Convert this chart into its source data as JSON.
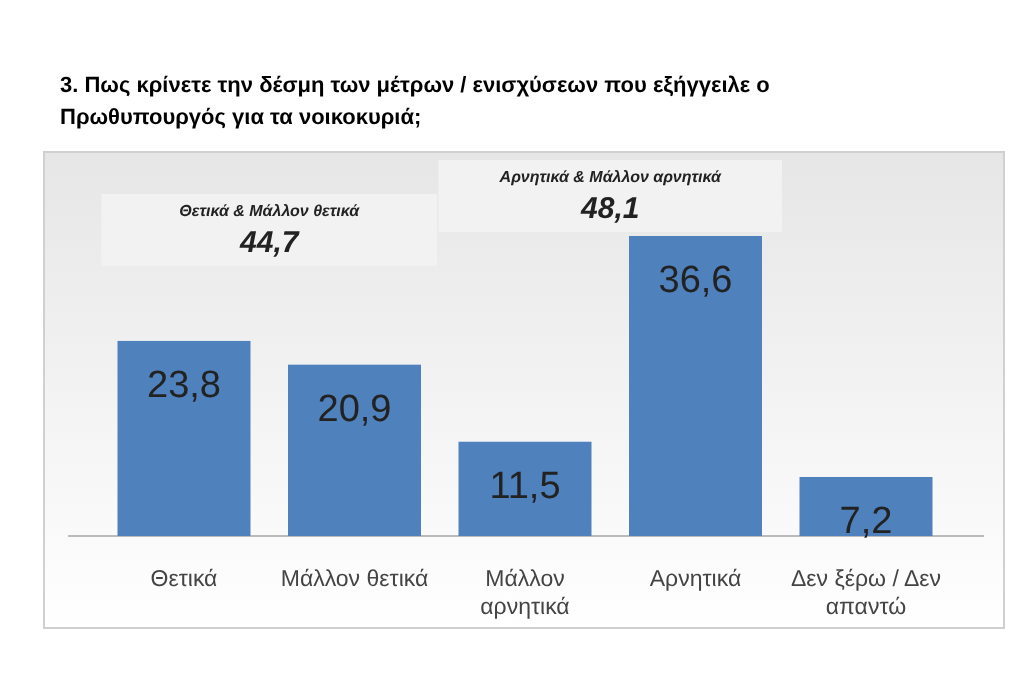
{
  "chart_data": {
    "type": "bar",
    "title": "3. Πως κρίνετε την δέσμη των μέτρων / ενισχύσεων που εξήγγειλε ο Πρωθυπουργός για τα νοικοκυριά;",
    "categories": [
      "Θετικά",
      "Μάλλον θετικά",
      "Μάλλον αρνητικά",
      "Αρνητικά",
      "Δεν ξέρω / Δεν απαντώ"
    ],
    "values": [
      23.8,
      20.9,
      11.5,
      36.6,
      7.2
    ],
    "value_labels": [
      "23,8",
      "20,9",
      "11,5",
      "36,6",
      "7,2"
    ],
    "color": "#4f81bd",
    "annotations": [
      "Θετικά & Μάλλον θετικά",
      "44,7",
      "Αρνητικά & Μάλλον αρνητικά",
      "48,1"
    ]
  }
}
